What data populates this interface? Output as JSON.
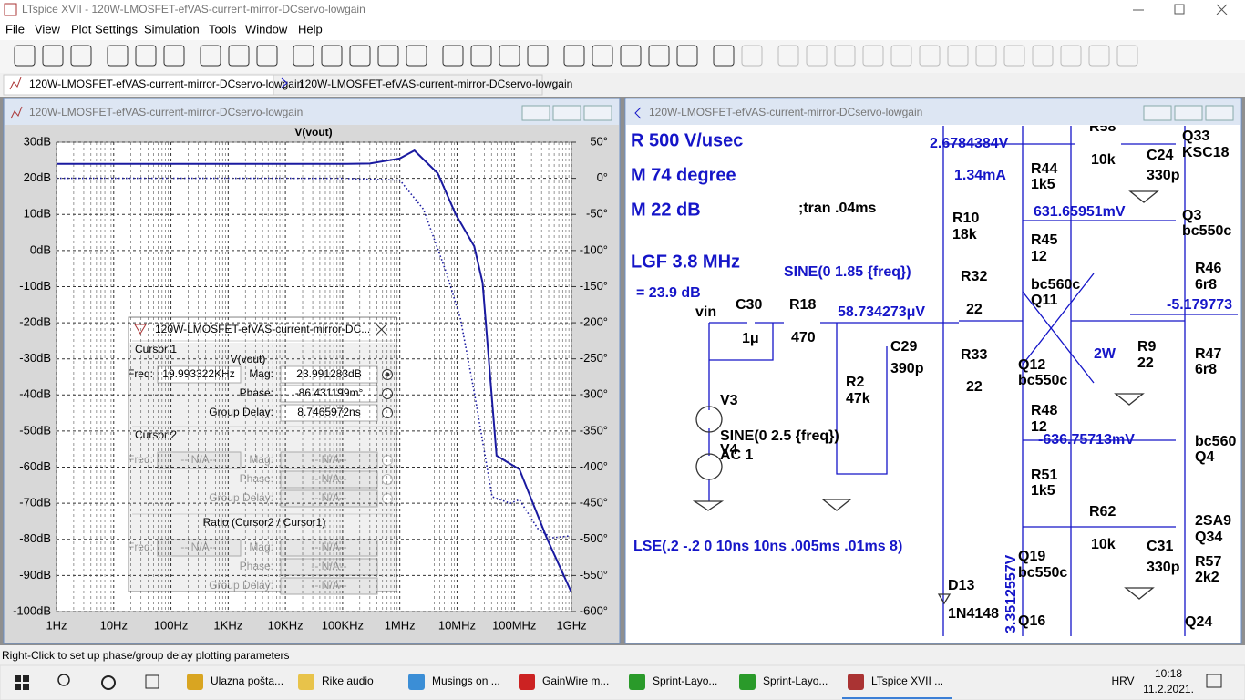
{
  "window": {
    "title": "LTspice XVII - 120W-LMOSFET-efVAS-current-mirror-DCservo-lowgain"
  },
  "menu": [
    "File",
    "View",
    "Plot Settings",
    "Simulation",
    "Tools",
    "Window",
    "Help"
  ],
  "tabs": [
    "120W-LMOSFET-efVAS-current-mirror-DCservo-lowgain",
    "120W-LMOSFET-efVAS-current-mirror-DCservo-lowgain"
  ],
  "plot_window": {
    "title": "120W-LMOSFET-efVAS-current-mirror-DCservo-lowgain",
    "trace_label": "V(vout)",
    "yticks": [
      {
        "value": 30,
        "label": "30dB"
      },
      {
        "value": 20,
        "label": "20dB"
      },
      {
        "value": 10,
        "label": "10dB"
      },
      {
        "value": 0,
        "label": "0dB"
      },
      {
        "value": -10,
        "label": "-10dB"
      },
      {
        "value": -20,
        "label": "-20dB"
      },
      {
        "value": -30,
        "label": "-30dB"
      },
      {
        "value": -40,
        "label": "-40dB"
      },
      {
        "value": -50,
        "label": "-50dB"
      },
      {
        "value": -60,
        "label": "-60dB"
      },
      {
        "value": -70,
        "label": "-70dB"
      },
      {
        "value": -80,
        "label": "-80dB"
      },
      {
        "value": -90,
        "label": "-90dB"
      },
      {
        "value": -100,
        "label": "-100dB"
      }
    ],
    "y2ticks": [
      {
        "value": 50,
        "label": "50°"
      },
      {
        "value": 0,
        "label": "0°"
      },
      {
        "value": -50,
        "label": "-50°"
      },
      {
        "value": -100,
        "label": "-100°"
      },
      {
        "value": -150,
        "label": "-150°"
      },
      {
        "value": -200,
        "label": "-200°"
      },
      {
        "value": -250,
        "label": "-250°"
      },
      {
        "value": -300,
        "label": "-300°"
      },
      {
        "value": -350,
        "label": "-350°"
      },
      {
        "value": -400,
        "label": "-400°"
      },
      {
        "value": -450,
        "label": "-450°"
      },
      {
        "value": -500,
        "label": "-500°"
      },
      {
        "value": -550,
        "label": "-550°"
      },
      {
        "value": -600,
        "label": "-600°"
      }
    ],
    "xticks": [
      {
        "value": 1,
        "label": "1Hz"
      },
      {
        "value": 10,
        "label": "10Hz"
      },
      {
        "value": 100,
        "label": "100Hz"
      },
      {
        "value": 1000,
        "label": "1KHz"
      },
      {
        "value": 10000,
        "label": "10KHz"
      },
      {
        "value": 100000,
        "label": "100KHz"
      },
      {
        "value": 1000000,
        "label": "1MHz"
      },
      {
        "value": 10000000,
        "label": "10MHz"
      },
      {
        "value": 100000000,
        "label": "100MHz"
      },
      {
        "value": 1000000000,
        "label": "1GHz"
      }
    ],
    "ylim": [
      -100,
      30
    ],
    "y2lim": [
      -600,
      50
    ],
    "xlim": [
      1,
      1000000000
    ],
    "log_x": true,
    "series": [
      {
        "name": "magnitude",
        "color": "#1a1aa0",
        "x": [
          1,
          10,
          100,
          1000,
          10000,
          100000,
          300000,
          1000000,
          1800000,
          4600000,
          9500000,
          20000000,
          28000000,
          49000000,
          123000000,
          370000000,
          1000000000
        ],
        "values": [
          24,
          24,
          24,
          24,
          24,
          24,
          24.1,
          25.5,
          27.7,
          21.4,
          10,
          1.2,
          -8.9,
          -56.8,
          -60.6,
          -79.6,
          -94.7
        ]
      },
      {
        "name": "phase",
        "axis": "y2",
        "color": "#1a1aa0",
        "x": [
          1,
          10,
          100,
          1000,
          10000,
          100000,
          1000000,
          2600000,
          6600000,
          11500000,
          20000000,
          41000000,
          85000000,
          123000000,
          257000000,
          447000000,
          1000000000
        ],
        "values": [
          0,
          0,
          0,
          0,
          0,
          -0.1,
          -2.5,
          -43,
          -132,
          -195,
          -296,
          -441,
          -450,
          -445,
          -485,
          -498,
          -495
        ]
      }
    ]
  },
  "cursor_dialog": {
    "title": "120W-LMOSFET-efVAS-current-mirror-DC...",
    "cursor1": {
      "heading": "Cursor 1",
      "trace": "V(vout)",
      "freq_label": "Freq:",
      "freq": "19.993322KHz",
      "mag_label": "Mag:",
      "mag": "23.991283dB",
      "phase_label": "Phase:",
      "phase": "-86.431199m°",
      "gd_label": "Group Delay:",
      "gd": "8.7465972ns"
    },
    "cursor2": {
      "heading": "Cursor 2",
      "freq_label": "Freq:",
      "freq": "-- N/A--",
      "mag_label": "Mag:",
      "mag": "-- N/A--",
      "phase_label": "Phase:",
      "phase": "-- N/A--",
      "gd_label": "Group Delay:",
      "gd": "-- N/A--"
    },
    "ratio": {
      "heading": "Ratio (Cursor2 / Cursor1)",
      "freq_label": "Freq:",
      "freq": "-- N/A--",
      "mag_label": "Mag:",
      "mag": "-- N/A--",
      "phase_label": "Phase:",
      "phase": "-- N/A--",
      "gd_label": "Group Delay:",
      "gd": "-- N/A--"
    }
  },
  "schematic_window": {
    "title": "120W-LMOSFET-efVAS-current-mirror-DCservo-lowgain",
    "labels": [
      "R 500 V/usec",
      "M 74 degree",
      "M  22 dB",
      "LGF 3.8 MHz",
      "= 23.9 dB",
      "SINE(0 1.85 {freq})",
      ";tran .04ms",
      "vin",
      "C30",
      "1μ",
      "R18",
      "470",
      "58.734273μV",
      "C29",
      "390p",
      "R2",
      "47k",
      "V3",
      "SINE(0 2.5 {freq})",
      "V4",
      "AC 1",
      "LSE(.2 -.2 0 10ns 10ns .005ms .01ms 8)",
      "2.6784384V",
      "1.34mA",
      "R44",
      "1k5",
      "R10",
      "18k",
      "R45",
      "12",
      "631.65951mV",
      "R32",
      "22",
      "bc560c",
      "Q11",
      "R33",
      "22",
      "Q12",
      "bc550c",
      "R48",
      "12",
      "-636.75713mV",
      "R51",
      "1k5",
      "R62",
      "10k",
      "C31",
      "330p",
      "Q19",
      "bc550c",
      "D13",
      "1N4148",
      "Q16",
      "R58",
      "10k",
      "C24",
      "330p",
      "Q33",
      "KSC18",
      "Q3",
      "bc550c",
      "R46",
      "6r8",
      "-5.179773",
      "2W",
      "R9",
      "22",
      "R47",
      "6r8",
      "bc560",
      "Q4",
      "2SA9",
      "Q34",
      "R57",
      "2k2",
      "Q24",
      "3.3512557V"
    ]
  },
  "status_bar": "Right-Click to set up phase/group delay plotting parameters",
  "taskbar": {
    "items": [
      "Ulazna pošta...",
      "Rike audio",
      "Musings on ...",
      "GainWire m...",
      "Sprint-Layo...",
      "Sprint-Layo...",
      "LTspice XVII ..."
    ],
    "language": "HRV",
    "time": "10:18",
    "date": "11.2.2021."
  }
}
